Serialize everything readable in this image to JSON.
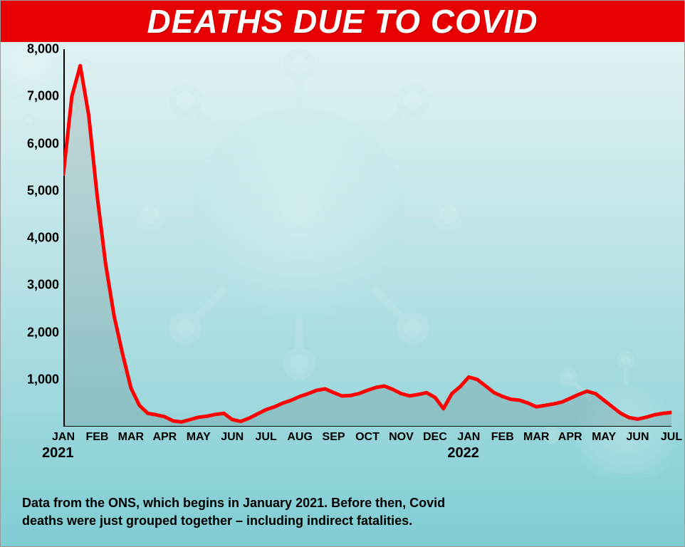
{
  "title": "DEATHS DUE TO COVID",
  "title_color": "#ffffff",
  "title_bg": "#e60000",
  "title_fontsize": 46,
  "background_gradient": [
    "#e8f5f6",
    "#b8e2e5",
    "#7fcdd3"
  ],
  "chart": {
    "type": "line-area",
    "line_color": "#ff0000",
    "line_width": 5,
    "fill_color": "rgba(0,0,0,0.10)",
    "axis_color": "#000000",
    "ylim": [
      0,
      8000
    ],
    "ytick_step": 1000,
    "yticks": [
      "1,000",
      "2,000",
      "3,000",
      "4,000",
      "5,000",
      "6,000",
      "7,000",
      "8,000"
    ],
    "xticks": [
      "JAN",
      "FEB",
      "MAR",
      "APR",
      "MAY",
      "JUN",
      "JUL",
      "AUG",
      "SEP",
      "OCT",
      "NOV",
      "DEC",
      "JAN",
      "FEB",
      "MAR",
      "APR",
      "MAY",
      "JUN",
      "JUL"
    ],
    "year_labels": [
      {
        "label": "2021",
        "at_index": 0
      },
      {
        "label": "2022",
        "at_index": 12
      }
    ],
    "x_count": 19,
    "values_weekly": [
      5350,
      7000,
      7650,
      6600,
      4900,
      3450,
      2350,
      1550,
      820,
      450,
      280,
      250,
      210,
      120,
      100,
      150,
      200,
      220,
      260,
      280,
      150,
      110,
      180,
      270,
      360,
      420,
      500,
      560,
      640,
      700,
      770,
      800,
      720,
      650,
      660,
      700,
      770,
      830,
      860,
      790,
      700,
      650,
      680,
      720,
      620,
      380,
      700,
      850,
      1050,
      1000,
      860,
      720,
      640,
      580,
      560,
      500,
      420,
      450,
      480,
      520,
      600,
      680,
      750,
      700,
      560,
      420,
      280,
      190,
      160,
      200,
      250,
      280,
      300
    ],
    "label_fontsize": 18,
    "tick_fontsize": 16
  },
  "caption": "Data from the ONS, which begins in January 2021. Before then, Covid deaths were just grouped together – including indirect fatalities.",
  "caption_fontsize": 18
}
